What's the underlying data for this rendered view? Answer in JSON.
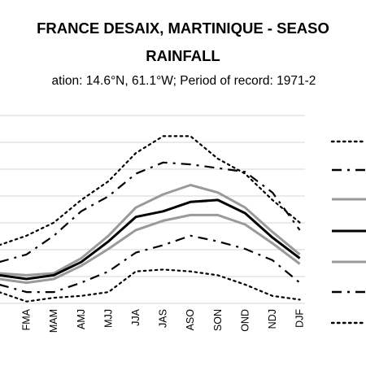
{
  "title_line1": "FRANCE DESAIX, MARTINIQUE - SEASO",
  "title_line2": "RAINFALL",
  "subtitle": "ation: 14.6°N, 61.1°W; Period of record: 1971-2",
  "chart_data": {
    "type": "line",
    "title": "FRANCE DESAIX, MARTINIQUE - SEASO RAINFALL",
    "subtitle": "ation: 14.6°N, 61.1°W; Period of record: 1971-2",
    "categories": [
      "",
      "FMA",
      "MAM",
      "AMJ",
      "MJJ",
      "JJA",
      "JAS",
      "ASO",
      "SON",
      "OND",
      "NDJ",
      "DJF"
    ],
    "gridlines": 7,
    "legend_position": "right",
    "series": [
      {
        "style": "dotted",
        "color": "#000000",
        "values": [
          3.1,
          3.6,
          4.3,
          5.5,
          6.5,
          8.0,
          8.9,
          8.9,
          7.7,
          6.9,
          5.5,
          4.3
        ]
      },
      {
        "style": "dash-dot",
        "color": "#000000",
        "values": [
          2.2,
          2.6,
          3.6,
          4.9,
          5.7,
          6.9,
          7.5,
          7.4,
          7.2,
          7.0,
          5.9,
          3.9
        ]
      },
      {
        "style": "solid",
        "color": "#9a9a9a",
        "values": [
          1.6,
          1.5,
          1.6,
          2.4,
          3.6,
          5.1,
          5.8,
          6.3,
          5.9,
          5.1,
          3.8,
          2.6
        ]
      },
      {
        "style": "solid",
        "color": "#000000",
        "values": [
          1.5,
          1.3,
          1.5,
          2.2,
          3.3,
          4.6,
          4.9,
          5.4,
          5.5,
          4.8,
          3.5,
          2.4
        ]
      },
      {
        "style": "solid",
        "color": "#9a9a9a",
        "values": [
          1.3,
          1.1,
          1.3,
          2.0,
          2.9,
          3.9,
          4.4,
          4.7,
          4.7,
          4.2,
          3.2,
          2.1
        ]
      },
      {
        "style": "dash-dot",
        "color": "#000000",
        "values": [
          1.0,
          0.6,
          0.6,
          1.1,
          1.7,
          2.7,
          3.1,
          3.6,
          3.3,
          2.9,
          2.3,
          1.1
        ]
      },
      {
        "style": "dotted",
        "color": "#000000",
        "values": [
          0.6,
          0.1,
          0.3,
          0.4,
          0.6,
          1.7,
          1.8,
          1.7,
          1.5,
          1.0,
          0.4,
          0.2
        ]
      }
    ]
  }
}
